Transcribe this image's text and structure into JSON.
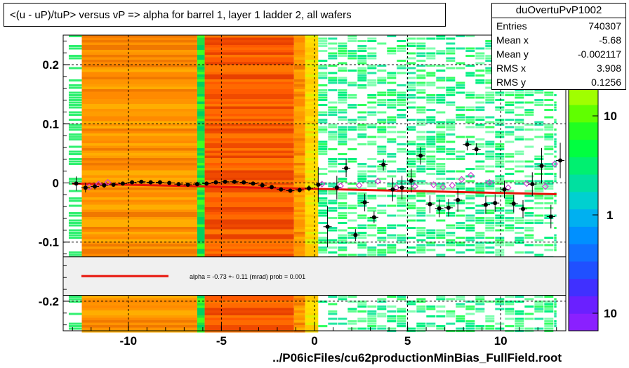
{
  "title": "<(u - uP)/tuP> versus   vP => alpha for barrel 1, layer 1 ladder 2, all wafers",
  "stats": {
    "name": "duOvertuPvP1002",
    "rows": [
      {
        "key": "Entries",
        "value": "740307"
      },
      {
        "key": "Mean x",
        "value": "-5.68"
      },
      {
        "key": "Mean y",
        "value": "-0.002117"
      },
      {
        "key": "RMS x",
        "value": "3.908"
      },
      {
        "key": "RMS y",
        "value": "0.1256"
      }
    ]
  },
  "legend": {
    "fit_text": "alpha =   -0.73 +-  0.11 (mrad) prob = 0.001",
    "line_color": "#e8140a"
  },
  "footer": "../P06icFiles/cu62productionMinBias_FullField.root",
  "colors": {
    "fit_line": "#e8140a",
    "profile_open": "#d040d0",
    "profile_filled": "#000000"
  },
  "chart_data": {
    "type": "heatmap",
    "title": "<(u - uP)/tuP> versus   vP => alpha for barrel 1, layer 1 ladder 2, all wafers",
    "xlabel": "",
    "ylabel": "",
    "xlim": [
      -13.5,
      13.5
    ],
    "ylim": [
      -0.25,
      0.25
    ],
    "x_ticks": [
      -10,
      -5,
      0,
      5,
      10
    ],
    "y_ticks": [
      0.2,
      0.1,
      0,
      -0.1,
      -0.2
    ],
    "y_tick_labels": [
      "0.2",
      "0.1",
      "0",
      "-0.1",
      "-0.2"
    ],
    "z_scale": "log",
    "z_tick_labels": [
      "10",
      "1",
      "10"
    ],
    "grid": true,
    "heatmap_bands": [
      {
        "x0": -12.5,
        "x1": -6.3,
        "level": "high"
      },
      {
        "x0": -6.3,
        "x1": -5.9,
        "level": "green"
      },
      {
        "x0": -5.9,
        "x1": -1.1,
        "level": "highest"
      },
      {
        "x0": -1.1,
        "x1": -0.5,
        "level": "high"
      },
      {
        "x0": -0.5,
        "x1": 0.2,
        "level": "yellow"
      },
      {
        "x0": 0.2,
        "x1": 13.0,
        "level": "low_sparse"
      }
    ],
    "legend_panel_y": [
      -0.125,
      -0.19
    ],
    "fit": {
      "x": [
        -13.0,
        13.0
      ],
      "y": [
        -0.001,
        -0.019
      ],
      "label": "alpha =   -0.73 +-  0.11 (mrad) prob = 0.001"
    },
    "profile": [
      {
        "x": -12.8,
        "y": -0.001,
        "err": 0.012
      },
      {
        "x": -12.3,
        "y": -0.008,
        "err": 0.008
      },
      {
        "x": -11.8,
        "y": -0.006,
        "err": 0.005
      },
      {
        "x": -11.3,
        "y": -0.004,
        "err": 0.004
      },
      {
        "x": -10.8,
        "y": -0.003,
        "err": 0.003
      },
      {
        "x": -10.3,
        "y": -0.001,
        "err": 0.003
      },
      {
        "x": -9.8,
        "y": 0.001,
        "err": 0.003
      },
      {
        "x": -9.3,
        "y": 0.002,
        "err": 0.003
      },
      {
        "x": -8.8,
        "y": 0.001,
        "err": 0.003
      },
      {
        "x": -8.3,
        "y": 0.001,
        "err": 0.003
      },
      {
        "x": -7.8,
        "y": 0.0,
        "err": 0.003
      },
      {
        "x": -7.3,
        "y": -0.002,
        "err": 0.003
      },
      {
        "x": -6.8,
        "y": -0.003,
        "err": 0.003
      },
      {
        "x": -6.3,
        "y": -0.002,
        "err": 0.004
      },
      {
        "x": -5.8,
        "y": -0.001,
        "err": 0.003
      },
      {
        "x": -5.3,
        "y": 0.001,
        "err": 0.003
      },
      {
        "x": -4.8,
        "y": 0.002,
        "err": 0.003
      },
      {
        "x": -4.3,
        "y": 0.002,
        "err": 0.003
      },
      {
        "x": -3.8,
        "y": 0.001,
        "err": 0.003
      },
      {
        "x": -3.3,
        "y": -0.001,
        "err": 0.003
      },
      {
        "x": -2.8,
        "y": -0.004,
        "err": 0.003
      },
      {
        "x": -2.3,
        "y": -0.007,
        "err": 0.003
      },
      {
        "x": -1.8,
        "y": -0.011,
        "err": 0.003
      },
      {
        "x": -1.3,
        "y": -0.013,
        "err": 0.003
      },
      {
        "x": -0.8,
        "y": -0.012,
        "err": 0.004
      },
      {
        "x": -0.3,
        "y": -0.009,
        "err": 0.005
      },
      {
        "x": 0.2,
        "y": -0.003,
        "err": 0.03
      },
      {
        "x": 0.7,
        "y": -0.074,
        "err": 0.035
      },
      {
        "x": 1.2,
        "y": -0.008,
        "err": 0.02
      },
      {
        "x": 1.7,
        "y": 0.025,
        "err": 0.015
      },
      {
        "x": 2.2,
        "y": -0.088,
        "err": 0.01
      },
      {
        "x": 2.7,
        "y": -0.033,
        "err": 0.015
      },
      {
        "x": 3.2,
        "y": -0.058,
        "err": 0.01
      },
      {
        "x": 3.7,
        "y": 0.031,
        "err": 0.01
      },
      {
        "x": 4.2,
        "y": -0.011,
        "err": 0.02
      },
      {
        "x": 4.7,
        "y": -0.008,
        "err": 0.02
      },
      {
        "x": 5.2,
        "y": 0.004,
        "err": 0.02
      },
      {
        "x": 5.7,
        "y": 0.046,
        "err": 0.015
      },
      {
        "x": 6.2,
        "y": -0.036,
        "err": 0.015
      },
      {
        "x": 6.7,
        "y": -0.043,
        "err": 0.015
      },
      {
        "x": 7.2,
        "y": -0.042,
        "err": 0.015
      },
      {
        "x": 7.7,
        "y": -0.029,
        "err": 0.02
      },
      {
        "x": 8.2,
        "y": 0.065,
        "err": 0.01
      },
      {
        "x": 8.7,
        "y": 0.057,
        "err": 0.01
      },
      {
        "x": 9.2,
        "y": -0.037,
        "err": 0.015
      },
      {
        "x": 9.7,
        "y": -0.034,
        "err": 0.015
      },
      {
        "x": 10.2,
        "y": -0.011,
        "err": 0.015
      },
      {
        "x": 10.7,
        "y": -0.035,
        "err": 0.015
      },
      {
        "x": 11.2,
        "y": -0.044,
        "err": 0.015
      },
      {
        "x": 11.7,
        "y": -0.002,
        "err": 0.02
      },
      {
        "x": 12.2,
        "y": 0.029,
        "err": 0.03
      },
      {
        "x": 12.7,
        "y": -0.057,
        "err": 0.02
      },
      {
        "x": 13.2,
        "y": 0.038,
        "err": 0.03
      }
    ],
    "profile_open": [
      {
        "x": -12.1,
        "y": -0.007
      },
      {
        "x": -11.6,
        "y": -0.002
      },
      {
        "x": -11.1,
        "y": 0.001
      },
      {
        "x": 0.4,
        "y": -0.002
      },
      {
        "x": 1.4,
        "y": -0.005
      },
      {
        "x": 2.4,
        "y": -0.004
      },
      {
        "x": 3.4,
        "y": 0.003
      },
      {
        "x": 4.4,
        "y": -0.008
      },
      {
        "x": 5.4,
        "y": -0.006
      },
      {
        "x": 6.4,
        "y": -0.003
      },
      {
        "x": 6.9,
        "y": -0.007
      },
      {
        "x": 7.4,
        "y": -0.004
      },
      {
        "x": 7.9,
        "y": 0.006
      },
      {
        "x": 8.4,
        "y": 0.013
      },
      {
        "x": 9.4,
        "y": 0.001
      },
      {
        "x": 10.4,
        "y": -0.008
      },
      {
        "x": 11.4,
        "y": -0.001
      },
      {
        "x": 12.4,
        "y": -0.006
      },
      {
        "x": 12.9,
        "y": 0.032
      }
    ]
  }
}
